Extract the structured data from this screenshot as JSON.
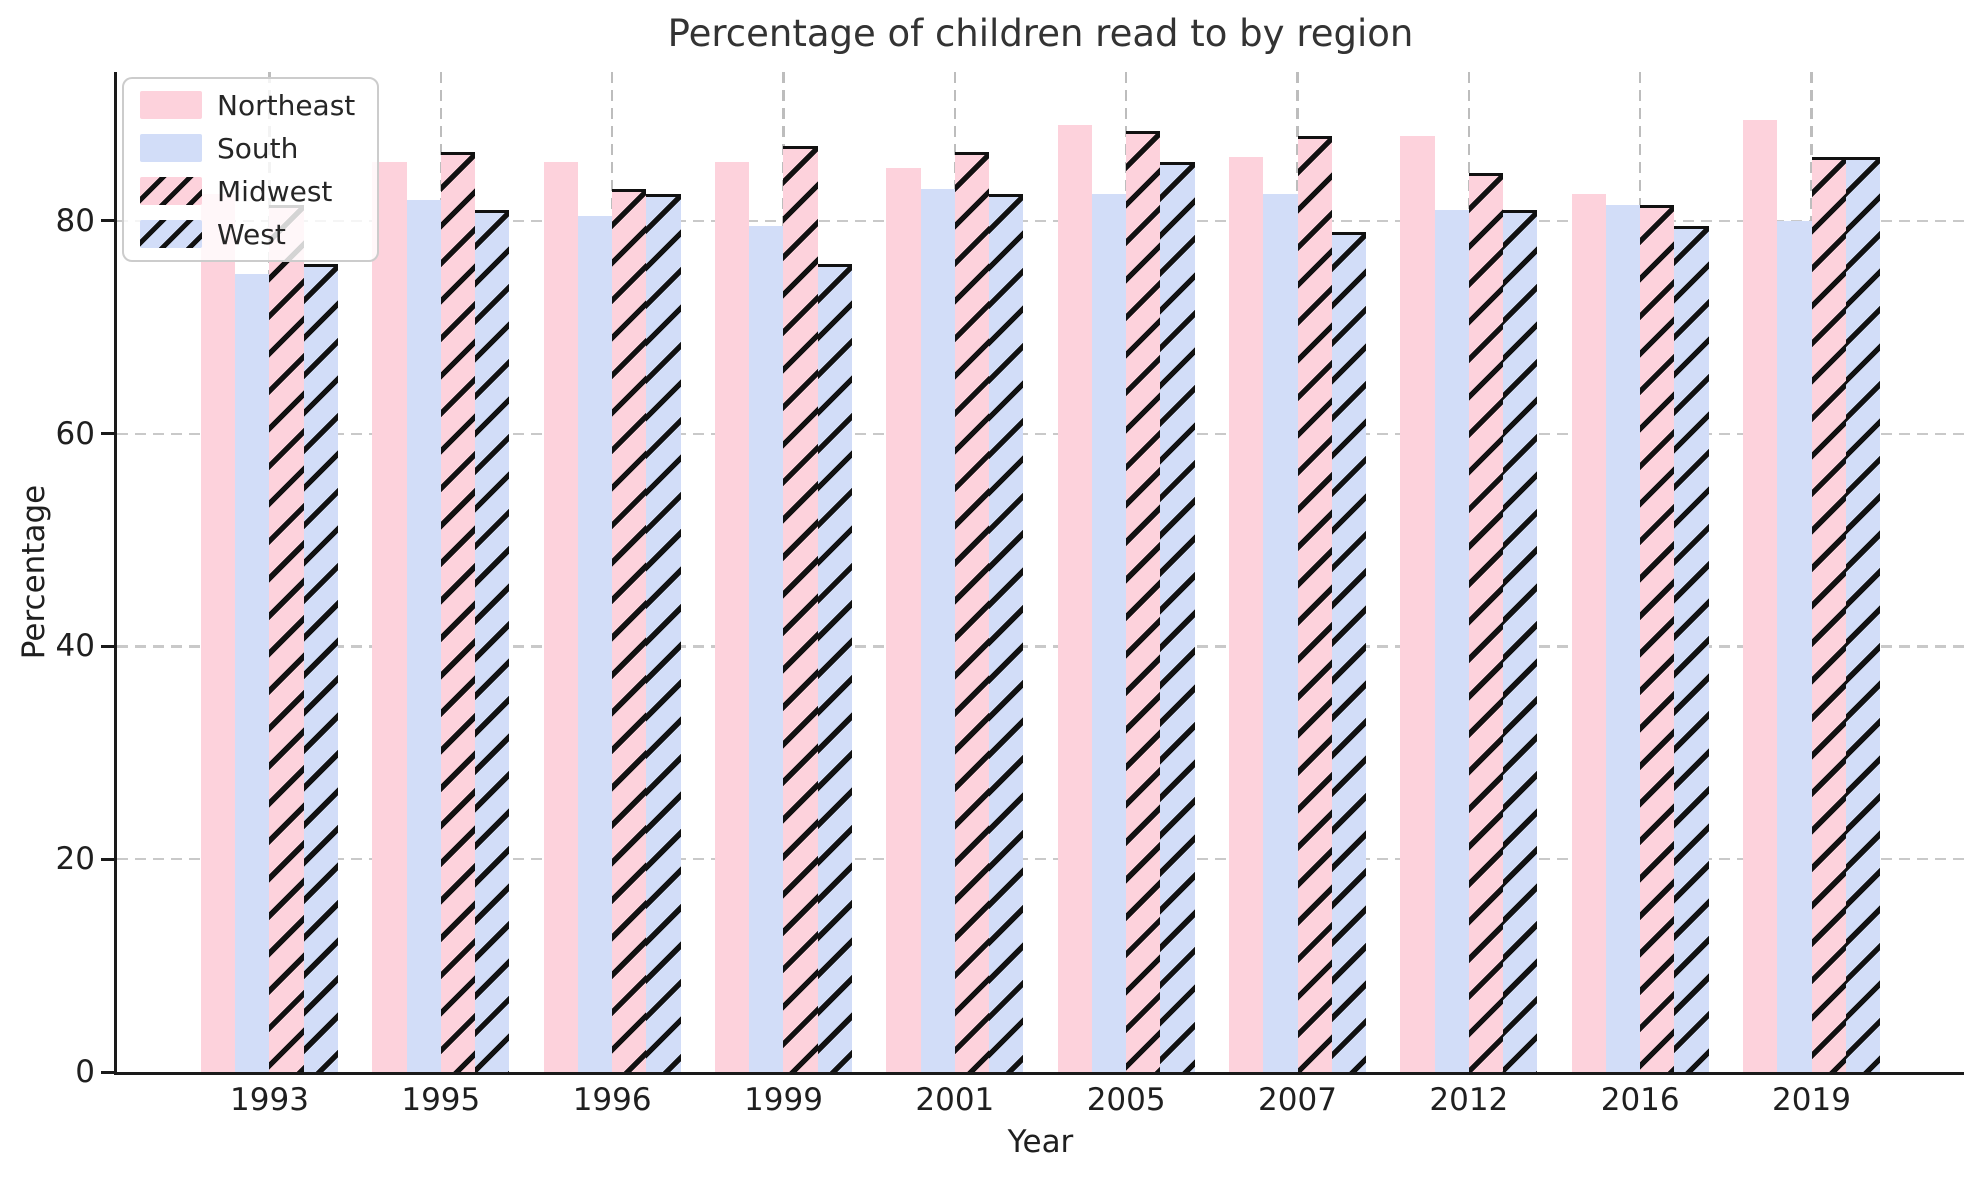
{
  "chart_data": {
    "type": "bar",
    "title": "Percentage of children read to by region",
    "xlabel": "Year",
    "ylabel": "Percentage",
    "categories": [
      "1993",
      "1995",
      "1996",
      "1999",
      "2001",
      "2005",
      "2007",
      "2012",
      "2016",
      "2019"
    ],
    "series": [
      {
        "name": "Northeast",
        "color": "#fdd2dc",
        "hatch": false,
        "values": [
          82.5,
          85.5,
          85.5,
          85.5,
          85,
          89,
          86,
          88,
          82.5,
          89.5
        ]
      },
      {
        "name": "South",
        "color": "#d2ddf8",
        "hatch": false,
        "values": [
          75,
          82,
          80.5,
          79.5,
          83,
          82.5,
          82.5,
          81,
          81.5,
          80
        ]
      },
      {
        "name": "Midwest",
        "color": "#fdd2dc",
        "hatch": true,
        "values": [
          81.5,
          86.5,
          83,
          87,
          86.5,
          88.5,
          88,
          84.5,
          81.5,
          86
        ]
      },
      {
        "name": "West",
        "color": "#d2ddf8",
        "hatch": true,
        "values": [
          76,
          81,
          82.5,
          76,
          82.5,
          85.5,
          79,
          81,
          79.5,
          86
        ]
      }
    ],
    "yticks": [
      0,
      20,
      40,
      60,
      80
    ],
    "ylim": [
      0,
      94
    ],
    "grid": true,
    "legend_position": "upper left",
    "hatch_color": "#111111",
    "hatch_pattern": "//"
  }
}
